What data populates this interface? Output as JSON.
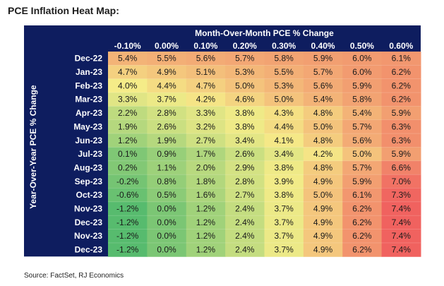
{
  "title": "PCE Inflation Heat Map:",
  "source": "Source: FactSet, RJ Economics",
  "colors": {
    "header_bg": "#0e1d5f",
    "header_text": "#ffffff",
    "low": "#57bb6e",
    "mid": "#f5ec88",
    "high": "#f0625f"
  },
  "chart_data": {
    "type": "heatmap",
    "title": "PCE Inflation Heat Map:",
    "xlabel": "Month-Over-Month PCE % Change",
    "ylabel": "Year-Over-Year PCE % Change",
    "x": [
      "-0.10%",
      "0.00%",
      "0.10%",
      "0.20%",
      "0.30%",
      "0.40%",
      "0.50%",
      "0.60%"
    ],
    "y": [
      "Dec-22",
      "Jan-23",
      "Feb-23",
      "Mar-23",
      "Apr-23",
      "May-23",
      "Jun-23",
      "Jul-23",
      "Aug-23",
      "Sep-23",
      "Oct-23",
      "Nov-23",
      "Dec-23",
      "Nov-23",
      "Dec-23"
    ],
    "values": [
      [
        5.4,
        5.5,
        5.6,
        5.7,
        5.8,
        5.9,
        6.0,
        6.1
      ],
      [
        4.7,
        4.9,
        5.1,
        5.3,
        5.5,
        5.7,
        6.0,
        6.2
      ],
      [
        4.0,
        4.4,
        4.7,
        5.0,
        5.3,
        5.6,
        5.9,
        6.2
      ],
      [
        3.3,
        3.7,
        4.2,
        4.6,
        5.0,
        5.4,
        5.8,
        6.2
      ],
      [
        2.2,
        2.8,
        3.3,
        3.8,
        4.3,
        4.8,
        5.4,
        5.9
      ],
      [
        1.9,
        2.6,
        3.2,
        3.8,
        4.4,
        5.0,
        5.7,
        6.3
      ],
      [
        1.2,
        1.9,
        2.7,
        3.4,
        4.1,
        4.8,
        5.6,
        6.3
      ],
      [
        0.1,
        0.9,
        1.7,
        2.6,
        3.4,
        4.2,
        5.0,
        5.9
      ],
      [
        0.2,
        1.1,
        2.0,
        2.9,
        3.8,
        4.8,
        5.7,
        6.6
      ],
      [
        -0.2,
        0.8,
        1.8,
        2.8,
        3.9,
        4.9,
        5.9,
        7.0
      ],
      [
        -0.6,
        0.5,
        1.6,
        2.7,
        3.8,
        5.0,
        6.1,
        7.3
      ],
      [
        -1.2,
        0.0,
        1.2,
        2.4,
        3.7,
        4.9,
        6.2,
        7.4
      ],
      [
        -1.2,
        0.0,
        1.2,
        2.4,
        3.7,
        4.9,
        6.2,
        7.4
      ],
      [
        -1.2,
        0.0,
        1.2,
        2.4,
        3.7,
        4.9,
        6.2,
        7.4
      ],
      [
        -1.2,
        0.0,
        1.2,
        2.4,
        3.7,
        4.9,
        6.2,
        7.4
      ]
    ],
    "value_format": "percent_1dp"
  }
}
